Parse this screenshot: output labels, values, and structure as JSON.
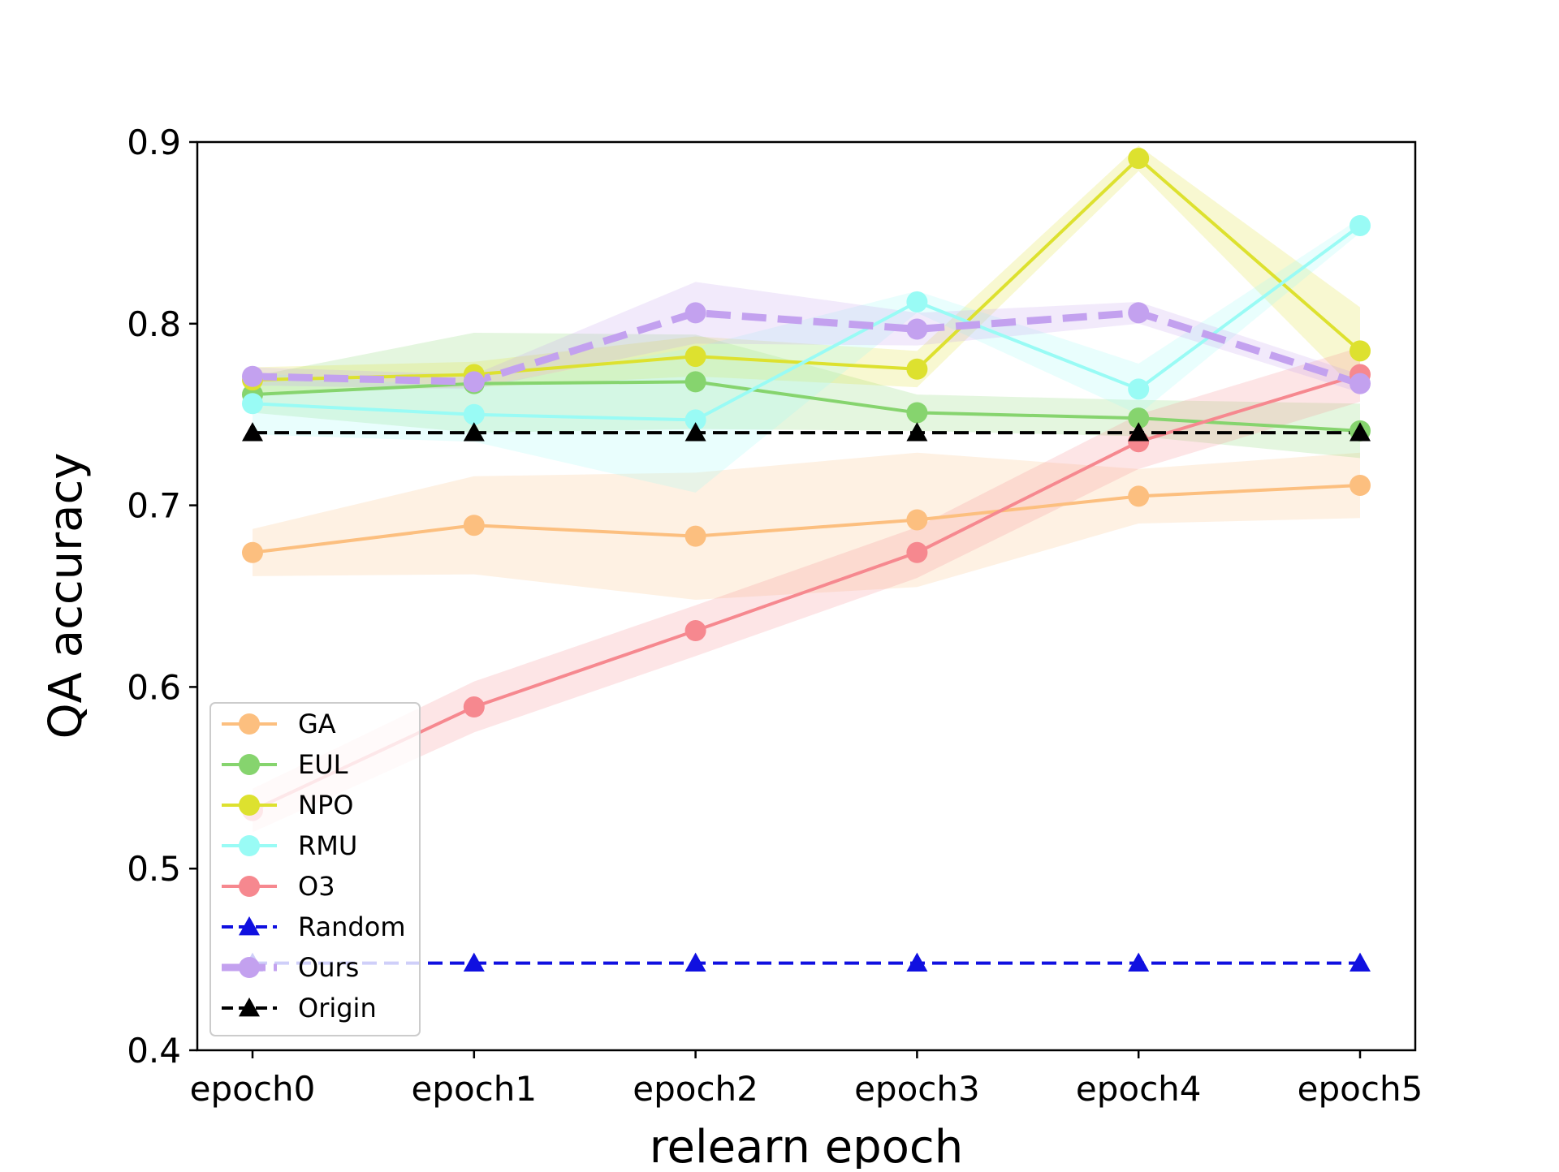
{
  "chart_data": {
    "type": "line",
    "title": "",
    "xlabel": "relearn epoch",
    "ylabel": "QA accuracy",
    "categories": [
      "epoch0",
      "epoch1",
      "epoch2",
      "epoch3",
      "epoch4",
      "epoch5"
    ],
    "ylim": [
      0.4,
      0.9
    ],
    "yticks": [
      "0.4",
      "0.5",
      "0.6",
      "0.7",
      "0.8",
      "0.9"
    ],
    "grid": false,
    "legend_position": "lower-left",
    "series": [
      {
        "name": "GA",
        "color": "#fcbf7f",
        "style": "solid",
        "marker": "circle",
        "values": [
          0.674,
          0.689,
          0.683,
          0.692,
          0.705,
          0.711
        ],
        "band_lower": [
          0.661,
          0.662,
          0.648,
          0.655,
          0.69,
          0.693
        ],
        "band_upper": [
          0.687,
          0.716,
          0.718,
          0.729,
          0.72,
          0.729
        ]
      },
      {
        "name": "EUL",
        "color": "#86d46e",
        "style": "solid",
        "marker": "circle",
        "values": [
          0.761,
          0.767,
          0.768,
          0.751,
          0.748,
          0.741
        ],
        "band_lower": [
          0.751,
          0.74,
          0.742,
          0.741,
          0.738,
          0.726
        ],
        "band_upper": [
          0.771,
          0.795,
          0.794,
          0.761,
          0.758,
          0.756
        ]
      },
      {
        "name": "NPO",
        "color": "#dde12f",
        "style": "solid",
        "marker": "circle",
        "values": [
          0.769,
          0.772,
          0.782,
          0.775,
          0.891,
          0.785
        ],
        "band_lower": [
          0.762,
          0.765,
          0.771,
          0.765,
          0.884,
          0.761
        ],
        "band_upper": [
          0.776,
          0.779,
          0.793,
          0.785,
          0.898,
          0.809
        ]
      },
      {
        "name": "RMU",
        "color": "#99fbf5",
        "style": "solid",
        "marker": "circle",
        "values": [
          0.756,
          0.75,
          0.747,
          0.812,
          0.764,
          0.854
        ],
        "band_lower": [
          0.739,
          0.735,
          0.707,
          0.806,
          0.75,
          0.85
        ],
        "band_upper": [
          0.773,
          0.765,
          0.787,
          0.818,
          0.778,
          0.858
        ]
      },
      {
        "name": "O3",
        "color": "#f6888f",
        "style": "solid",
        "marker": "circle",
        "values": [
          0.532,
          0.589,
          0.631,
          0.674,
          0.735,
          0.772
        ],
        "band_lower": [
          0.52,
          0.575,
          0.617,
          0.66,
          0.72,
          0.757
        ],
        "band_upper": [
          0.544,
          0.603,
          0.645,
          0.688,
          0.75,
          0.787
        ]
      },
      {
        "name": "Random",
        "color": "#1010e0",
        "style": "dashed",
        "marker": "triangle",
        "values": [
          0.448,
          0.448,
          0.448,
          0.448,
          0.448,
          0.448
        ]
      },
      {
        "name": "Ours",
        "color": "#c3a1ef",
        "style": "thick-dashed",
        "marker": "circle",
        "values": [
          0.771,
          0.768,
          0.806,
          0.797,
          0.806,
          0.767
        ],
        "band_lower": [
          0.766,
          0.764,
          0.789,
          0.788,
          0.8,
          0.762
        ],
        "band_upper": [
          0.776,
          0.772,
          0.823,
          0.806,
          0.812,
          0.772
        ]
      },
      {
        "name": "Origin",
        "color": "#000000",
        "style": "dashed",
        "marker": "triangle",
        "values": [
          0.74,
          0.74,
          0.74,
          0.74,
          0.74,
          0.74
        ]
      }
    ]
  }
}
